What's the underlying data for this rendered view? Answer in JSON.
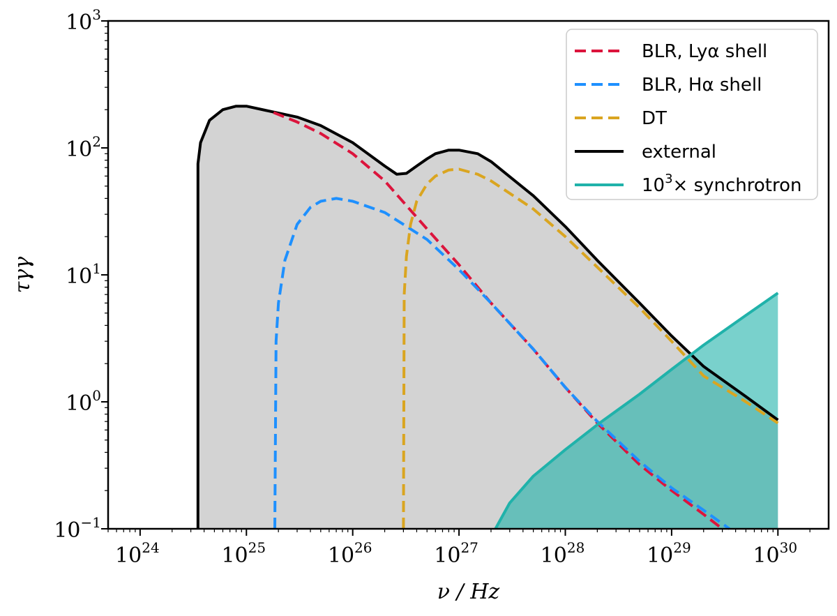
{
  "chart_data": {
    "type": "line",
    "xscale": "log",
    "yscale": "log",
    "xlim": [
      5e+23,
      3e+30
    ],
    "ylim": [
      0.1,
      1000
    ],
    "xlabel": "ν / Hz",
    "ylabel": "τγγ",
    "x_ticks": [
      {
        "base": "10",
        "exp": "24"
      },
      {
        "base": "10",
        "exp": "25"
      },
      {
        "base": "10",
        "exp": "26"
      },
      {
        "base": "10",
        "exp": "27"
      },
      {
        "base": "10",
        "exp": "28"
      },
      {
        "base": "10",
        "exp": "29"
      },
      {
        "base": "10",
        "exp": "30"
      }
    ],
    "y_ticks": [
      {
        "base": "10",
        "exp": "−1"
      },
      {
        "base": "10",
        "exp": "0"
      },
      {
        "base": "10",
        "exp": "1"
      },
      {
        "base": "10",
        "exp": "2"
      },
      {
        "base": "10",
        "exp": "3"
      }
    ],
    "legend_position": "top-right",
    "series": [
      {
        "name": "BLR, Lyα shell",
        "color": "#dc143c",
        "style": "dashed",
        "x": [
          1.8e+25,
          3e+25,
          5e+25,
          1e+26,
          2e+26,
          5e+26,
          1e+27,
          2e+27,
          5e+27,
          1e+28,
          2e+28,
          5e+28,
          1e+29,
          2e+29,
          3e+29
        ],
        "y": [
          190,
          160,
          130,
          90,
          55,
          23,
          12,
          6,
          2.6,
          1.3,
          0.68,
          0.32,
          0.2,
          0.13,
          0.1
        ]
      },
      {
        "name": "BLR, Hα shell",
        "color": "#1e90ff",
        "style": "dashed",
        "x": [
          1.85e+25,
          1.9e+25,
          2e+25,
          2.3e+25,
          3e+25,
          4e+25,
          5e+25,
          7e+25,
          1e+26,
          2e+26,
          5e+26,
          1e+27,
          2e+27,
          5e+27,
          1e+28,
          2e+28,
          5e+28,
          1e+29,
          2e+29,
          3.5e+29
        ],
        "y": [
          0.1,
          3,
          6,
          13,
          25,
          34,
          38,
          40,
          38,
          31,
          19,
          11,
          6,
          2.6,
          1.3,
          0.7,
          0.34,
          0.21,
          0.14,
          0.1
        ]
      },
      {
        "name": "DT",
        "color": "#daa520",
        "style": "dashed",
        "x": [
          3e+26,
          3.05e+26,
          3.2e+26,
          3.5e+26,
          4e+26,
          5e+26,
          6e+26,
          8e+26,
          1e+27,
          1.5e+27,
          2e+27,
          5e+27,
          1e+28,
          2e+28,
          5e+28,
          1e+29,
          2e+29,
          5e+29,
          1e+30
        ],
        "y": [
          0.1,
          7,
          14,
          25,
          38,
          52,
          60,
          67,
          68,
          62,
          55,
          33,
          20,
          11.5,
          5.5,
          3,
          1.6,
          1.0,
          0.68
        ]
      },
      {
        "name": "external",
        "color": "#000000",
        "style": "solid",
        "x": [
          3.5e+24,
          3.5e+24,
          3.7e+24,
          4.5e+24,
          6e+24,
          8e+24,
          1e+25,
          1.5e+25,
          2e+25,
          3e+25,
          5e+25,
          1e+26,
          2e+26,
          2.6e+26,
          3.2e+26,
          4e+26,
          5e+26,
          6e+26,
          8e+26,
          1e+27,
          1.5e+27,
          2e+27,
          5e+27,
          1e+28,
          2e+28,
          5e+28,
          1e+29,
          2e+29,
          5e+29,
          1e+30
        ],
        "y": [
          0.1,
          75,
          110,
          165,
          200,
          213,
          213,
          198,
          188,
          175,
          150,
          110,
          72,
          62,
          63,
          72,
          82,
          90,
          96,
          96,
          90,
          78,
          42,
          24,
          13,
          6,
          3.3,
          1.9,
          1.1,
          0.72
        ]
      },
      {
        "name": "10³× synchrotron",
        "legend_base": "10",
        "legend_exp": "3",
        "legend_suffix": "× synchrotron",
        "color": "#20b2aa",
        "style": "solid",
        "x": [
          2.2e+27,
          3e+27,
          5e+27,
          1e+28,
          2e+28,
          5e+28,
          1e+29,
          2e+29,
          5e+29,
          1e+30
        ],
        "y": [
          0.1,
          0.16,
          0.26,
          0.42,
          0.66,
          1.15,
          1.8,
          2.8,
          4.8,
          7.2
        ]
      }
    ]
  }
}
